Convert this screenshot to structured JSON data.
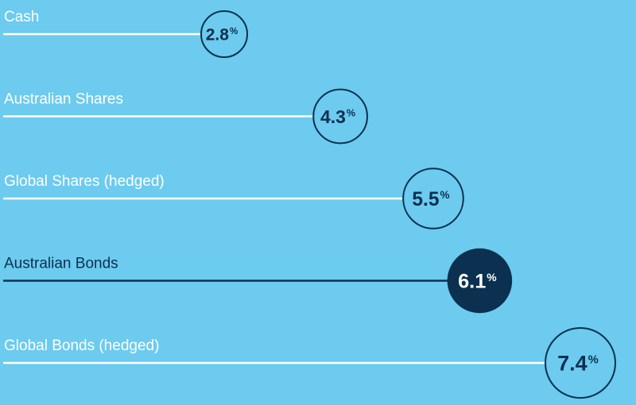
{
  "chart_data": {
    "type": "lollipop",
    "categories": [
      "Cash",
      "Australian Shares",
      "Global Shares (hedged)",
      "Australian Bonds",
      "Global Bonds (hedged)"
    ],
    "values": [
      2.8,
      4.3,
      5.5,
      6.1,
      7.4
    ],
    "value_labels": [
      "2.8",
      "4.3",
      "5.5",
      "6.1",
      "7.4"
    ],
    "unit": "%",
    "highlight_index": 3,
    "colors": {
      "background": "#6ccbee",
      "line": "#ffffff",
      "highlight": "#0b3050",
      "text_light": "#ffffff",
      "text_dark": "#0b3050"
    }
  }
}
